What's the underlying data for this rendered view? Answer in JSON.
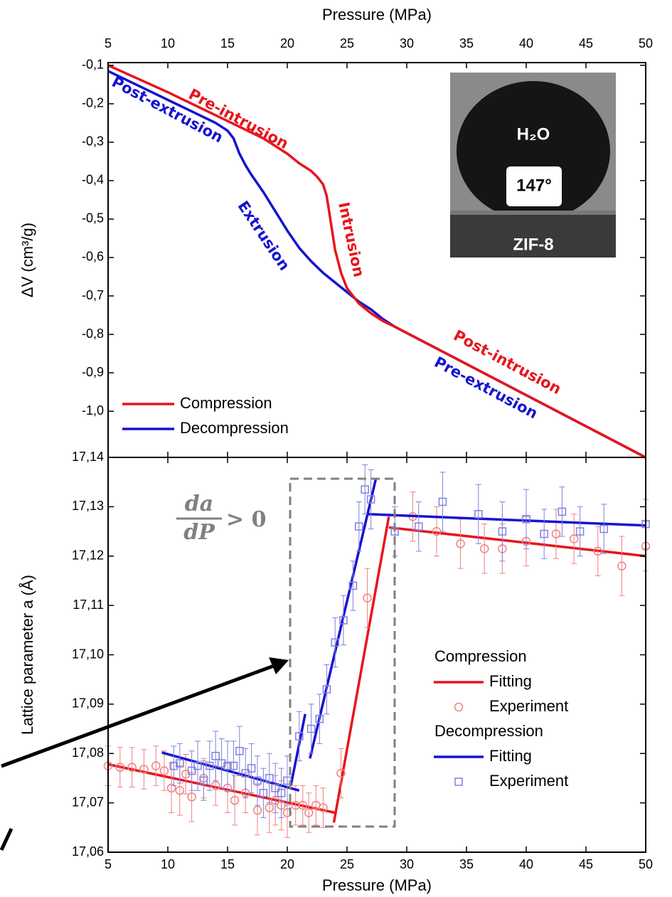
{
  "chart_data": [
    {
      "type": "line",
      "xlabel": "Pressure (MPa)",
      "ylabel": "ΔV (cm³/g)",
      "xlim": [
        5,
        50
      ],
      "xticks": [
        5,
        10,
        15,
        20,
        25,
        30,
        35,
        40,
        45,
        50
      ],
      "ylim": [
        -1.12,
        -0.093
      ],
      "yticks": [
        {
          "value": -0.1,
          "label": "-0,1"
        },
        {
          "value": -0.2,
          "label": "-0,2"
        },
        {
          "value": -0.3,
          "label": "-0,3"
        },
        {
          "value": -0.4,
          "label": "-0,4"
        },
        {
          "value": -0.5,
          "label": "-0,5"
        },
        {
          "value": -0.6,
          "label": "-0,6"
        },
        {
          "value": -0.7,
          "label": "-0,7"
        },
        {
          "value": -0.8,
          "label": "-0,8"
        },
        {
          "value": -0.9,
          "label": "-0,9"
        },
        {
          "value": -1.0,
          "label": "-1,0"
        }
      ],
      "legend": "lower left",
      "series": [
        {
          "name": "Compression",
          "color": "#e8141c",
          "x": [
            5,
            10,
            15,
            18,
            20,
            21,
            22,
            22.5,
            23,
            23.3,
            23.6,
            24,
            24.5,
            25,
            26,
            27,
            28,
            29,
            35,
            40,
            45,
            50
          ],
          "values": [
            -0.1,
            -0.17,
            -0.245,
            -0.29,
            -0.33,
            -0.355,
            -0.375,
            -0.39,
            -0.41,
            -0.44,
            -0.5,
            -0.58,
            -0.64,
            -0.68,
            -0.72,
            -0.745,
            -0.765,
            -0.78,
            -0.877,
            -0.958,
            -1.039,
            -1.12
          ]
        },
        {
          "name": "Decompression",
          "color": "#1414d0",
          "x": [
            5,
            8,
            11,
            14,
            15,
            15.5,
            16,
            16.5,
            17,
            18,
            19,
            20,
            21,
            22,
            23,
            24,
            25,
            26,
            27,
            28,
            29,
            50
          ],
          "values": [
            -0.115,
            -0.16,
            -0.205,
            -0.25,
            -0.27,
            -0.29,
            -0.33,
            -0.36,
            -0.385,
            -0.43,
            -0.48,
            -0.53,
            -0.575,
            -0.61,
            -0.64,
            -0.665,
            -0.69,
            -0.715,
            -0.735,
            -0.76,
            -0.78,
            -1.12
          ]
        }
      ],
      "annotations": [
        {
          "text": "Pre-intrusion",
          "color": "#e8141c"
        },
        {
          "text": "Post-extrusion",
          "color": "#1414d0"
        },
        {
          "text": "Extrusion",
          "color": "#1414d0"
        },
        {
          "text": "Intrusion",
          "color": "#e8141c"
        },
        {
          "text": "Post-intrusion",
          "color": "#e8141c"
        },
        {
          "text": "Pre-extrusion",
          "color": "#1414d0"
        }
      ],
      "inset": {
        "liquid": "H₂O",
        "angle": "147°",
        "material": "ZIF-8"
      }
    },
    {
      "type": "line",
      "xlabel": "Pressure (MPa)",
      "ylabel": "Lattice parameter a (Å)",
      "xlim": [
        5,
        50
      ],
      "xticks": [
        5,
        10,
        15,
        20,
        25,
        30,
        35,
        40,
        45,
        50
      ],
      "ylim": [
        17.06,
        17.14
      ],
      "yticks": [
        {
          "value": 17.06,
          "label": "17,06"
        },
        {
          "value": 17.07,
          "label": "17,07"
        },
        {
          "value": 17.08,
          "label": "17,08"
        },
        {
          "value": 17.09,
          "label": "17,09"
        },
        {
          "value": 17.1,
          "label": "17,10"
        },
        {
          "value": 17.11,
          "label": "17,11"
        },
        {
          "value": 17.12,
          "label": "17,12"
        },
        {
          "value": 17.13,
          "label": "17,13"
        },
        {
          "value": 17.14,
          "label": "17,14"
        }
      ],
      "legend": "lower right",
      "annotation": {
        "numerator": "da",
        "denominator": "dP",
        "relation": "> 0"
      },
      "groups": [
        {
          "name": "Compression",
          "series": [
            {
              "name": "Fitting",
              "color": "#e8141c",
              "x": [
                5,
                24,
                null,
                23.9,
                28.5,
                null,
                28.5,
                50
              ],
              "values": [
                17.0778,
                17.068,
                null,
                17.066,
                17.128,
                null,
                17.1258,
                17.12
              ]
            },
            {
              "name": "Experiment",
              "color": "#f08080",
              "marker": "circle",
              "x": [
                5,
                6,
                7,
                8,
                9,
                9.7,
                10.3,
                11,
                11.5,
                12,
                13,
                14,
                15,
                15.6,
                16.5,
                17.5,
                18.5,
                19,
                19.5,
                20,
                20.7,
                21.3,
                21.8,
                22.4,
                23,
                24.5,
                26.7,
                30.5,
                32.5,
                34.5,
                36.5,
                38,
                40,
                42.5,
                44,
                46,
                48,
                50
              ],
              "values": [
                17.0775,
                17.0772,
                17.0772,
                17.0768,
                17.0775,
                17.0765,
                17.073,
                17.0725,
                17.0758,
                17.0712,
                17.075,
                17.0735,
                17.073,
                17.0705,
                17.072,
                17.0685,
                17.069,
                17.0705,
                17.0695,
                17.068,
                17.0695,
                17.0695,
                17.068,
                17.0695,
                17.069,
                17.076,
                17.1115,
                17.128,
                17.125,
                17.1225,
                17.1215,
                17.1215,
                17.123,
                17.1245,
                17.1235,
                17.121,
                17.118,
                17.122
              ],
              "errors": [
                0.004,
                0.004,
                0.004,
                0.004,
                0.004,
                0.004,
                0.005,
                0.005,
                0.004,
                0.005,
                0.004,
                0.004,
                0.005,
                0.005,
                0.004,
                0.005,
                0.005,
                0.005,
                0.005,
                0.005,
                0.004,
                0.004,
                0.004,
                0.004,
                0.004,
                0.005,
                0.006,
                0.005,
                0.005,
                0.005,
                0.005,
                0.005,
                0.005,
                0.005,
                0.005,
                0.005,
                0.006,
                0.005
              ]
            }
          ]
        },
        {
          "name": "Decompression",
          "series": [
            {
              "name": "Fitting",
              "color": "#1414d0",
              "x": [
                9.5,
                21,
                null,
                20.3,
                21.5,
                null,
                21.9,
                27.4,
                null,
                26.8,
                50
              ],
              "values": [
                17.0802,
                17.0725,
                null,
                17.0735,
                17.088,
                null,
                17.079,
                17.1355,
                null,
                17.1285,
                17.1262
              ]
            },
            {
              "name": "Experiment",
              "color": "#8080e0",
              "marker": "square",
              "x": [
                10.5,
                11,
                12,
                12.5,
                13,
                13.5,
                14,
                14.5,
                15,
                15.5,
                16,
                16.5,
                17,
                17.5,
                18,
                18.5,
                19,
                19.5,
                20,
                21,
                22,
                22.7,
                23.3,
                24,
                24.7,
                25.5,
                26,
                26.5,
                27,
                29,
                31,
                33,
                36,
                38,
                40,
                41.5,
                43,
                44.5,
                46.5,
                50
              ],
              "values": [
                17.0775,
                17.078,
                17.0765,
                17.0775,
                17.0745,
                17.0775,
                17.0795,
                17.078,
                17.0775,
                17.0775,
                17.0805,
                17.076,
                17.077,
                17.0745,
                17.072,
                17.075,
                17.073,
                17.072,
                17.0745,
                17.0835,
                17.085,
                17.087,
                17.093,
                17.1025,
                17.107,
                17.114,
                17.126,
                17.1335,
                17.1315,
                17.125,
                17.126,
                17.131,
                17.1285,
                17.125,
                17.1275,
                17.1245,
                17.129,
                17.125,
                17.1255,
                17.1265
              ],
              "errors": [
                0.004,
                0.004,
                0.004,
                0.005,
                0.004,
                0.005,
                0.005,
                0.005,
                0.005,
                0.005,
                0.005,
                0.005,
                0.005,
                0.005,
                0.005,
                0.005,
                0.005,
                0.005,
                0.005,
                0.005,
                0.005,
                0.005,
                0.005,
                0.005,
                0.005,
                0.005,
                0.005,
                0.005,
                0.006,
                0.005,
                0.005,
                0.006,
                0.006,
                0.006,
                0.006,
                0.005,
                0.005,
                0.005,
                0.005,
                0.005
              ]
            }
          ]
        }
      ]
    }
  ]
}
